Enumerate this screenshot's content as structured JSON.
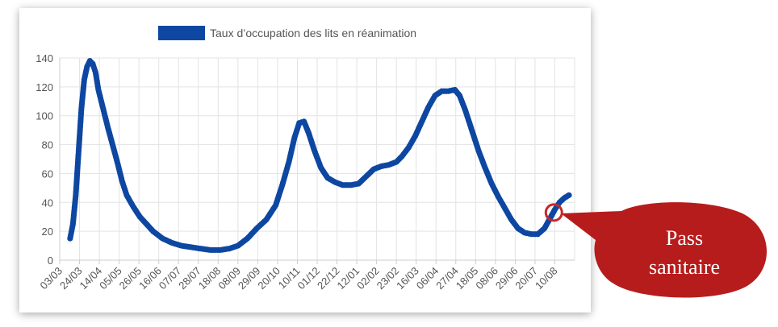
{
  "chart_data": {
    "type": "line",
    "legend": {
      "label": "Taux d’occupation des lits en réanimation",
      "position": "top",
      "color": "#0d47a1"
    },
    "y_ticks": [
      0,
      20,
      40,
      60,
      80,
      100,
      120,
      140
    ],
    "ylim": [
      0,
      140
    ],
    "x_tick_labels": [
      "03/03",
      "24/03",
      "14/04",
      "05/05",
      "26/05",
      "16/06",
      "07/07",
      "28/07",
      "18/08",
      "08/09",
      "29/09",
      "20/10",
      "10/11",
      "01/12",
      "22/12",
      "12/01",
      "02/02",
      "23/02",
      "16/03",
      "06/04",
      "27/04",
      "18/05",
      "08/06",
      "29/06",
      "20/07",
      "10/08"
    ],
    "grid": true,
    "series": [
      {
        "name": "Taux d’occupation des lits en réanimation",
        "color": "#0d47a1",
        "points": [
          [
            "2020-03-14",
            15
          ],
          [
            "2020-03-17",
            25
          ],
          [
            "2020-03-20",
            45
          ],
          [
            "2020-03-23",
            75
          ],
          [
            "2020-03-26",
            105
          ],
          [
            "2020-03-29",
            125
          ],
          [
            "2020-04-01",
            134
          ],
          [
            "2020-04-04",
            138
          ],
          [
            "2020-04-07",
            136
          ],
          [
            "2020-04-10",
            130
          ],
          [
            "2020-04-13",
            118
          ],
          [
            "2020-04-18",
            105
          ],
          [
            "2020-04-23",
            92
          ],
          [
            "2020-04-28",
            80
          ],
          [
            "2020-05-03",
            68
          ],
          [
            "2020-05-08",
            55
          ],
          [
            "2020-05-13",
            45
          ],
          [
            "2020-05-20",
            37
          ],
          [
            "2020-05-27",
            30
          ],
          [
            "2020-06-03",
            25
          ],
          [
            "2020-06-10",
            20
          ],
          [
            "2020-06-20",
            15
          ],
          [
            "2020-06-30",
            12
          ],
          [
            "2020-07-10",
            10
          ],
          [
            "2020-07-20",
            9
          ],
          [
            "2020-07-30",
            8
          ],
          [
            "2020-08-10",
            7
          ],
          [
            "2020-08-20",
            7
          ],
          [
            "2020-08-30",
            8
          ],
          [
            "2020-09-08",
            10
          ],
          [
            "2020-09-18",
            15
          ],
          [
            "2020-09-28",
            22
          ],
          [
            "2020-10-08",
            28
          ],
          [
            "2020-10-18",
            38
          ],
          [
            "2020-10-25",
            52
          ],
          [
            "2020-11-01",
            68
          ],
          [
            "2020-11-07",
            85
          ],
          [
            "2020-11-12",
            95
          ],
          [
            "2020-11-17",
            96
          ],
          [
            "2020-11-22",
            88
          ],
          [
            "2020-11-28",
            76
          ],
          [
            "2020-12-05",
            64
          ],
          [
            "2020-12-12",
            57
          ],
          [
            "2020-12-20",
            54
          ],
          [
            "2020-12-28",
            52
          ],
          [
            "2021-01-06",
            52
          ],
          [
            "2021-01-14",
            53
          ],
          [
            "2021-01-22",
            58
          ],
          [
            "2021-01-30",
            63
          ],
          [
            "2021-02-07",
            65
          ],
          [
            "2021-02-15",
            66
          ],
          [
            "2021-02-23",
            68
          ],
          [
            "2021-03-01",
            72
          ],
          [
            "2021-03-08",
            78
          ],
          [
            "2021-03-15",
            86
          ],
          [
            "2021-03-22",
            96
          ],
          [
            "2021-03-29",
            106
          ],
          [
            "2021-04-05",
            114
          ],
          [
            "2021-04-12",
            117
          ],
          [
            "2021-04-19",
            117
          ],
          [
            "2021-04-26",
            118
          ],
          [
            "2021-05-01",
            114
          ],
          [
            "2021-05-07",
            104
          ],
          [
            "2021-05-14",
            90
          ],
          [
            "2021-05-21",
            76
          ],
          [
            "2021-05-28",
            64
          ],
          [
            "2021-06-04",
            53
          ],
          [
            "2021-06-11",
            44
          ],
          [
            "2021-06-18",
            36
          ],
          [
            "2021-06-25",
            28
          ],
          [
            "2021-07-02",
            22
          ],
          [
            "2021-07-09",
            19
          ],
          [
            "2021-07-16",
            18
          ],
          [
            "2021-07-23",
            18
          ],
          [
            "2021-07-30",
            22
          ],
          [
            "2021-08-05",
            29
          ],
          [
            "2021-08-10",
            35
          ],
          [
            "2021-08-15",
            40
          ],
          [
            "2021-08-20",
            43
          ],
          [
            "2021-08-25",
            45
          ]
        ]
      }
    ],
    "annotation": {
      "text_lines": [
        "Pass",
        "sanitaire"
      ],
      "point": [
        "2021-08-09",
        33
      ],
      "fill": "#b71c1c",
      "marker_color": "#c62828"
    }
  }
}
